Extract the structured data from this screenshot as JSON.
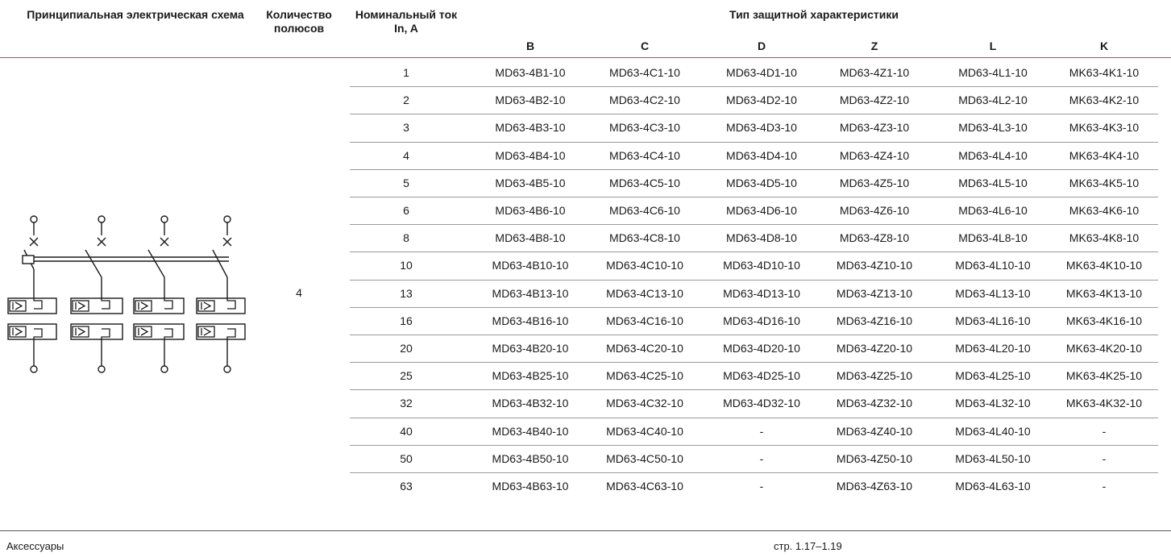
{
  "header": {
    "schema_label": "Принципиальная электрическая схема",
    "poles_label": "Количество полюсов",
    "current_label": "Номинальный ток In, A",
    "type_group_label": "Тип защитной характеристики",
    "types": [
      "B",
      "C",
      "D",
      "Z",
      "L",
      "K"
    ]
  },
  "poles_value": "4",
  "rows": [
    {
      "current": "1",
      "values": [
        "MD63-4B1-10",
        "MD63-4C1-10",
        "MD63-4D1-10",
        "MD63-4Z1-10",
        "MD63-4L1-10",
        "MK63-4K1-10"
      ]
    },
    {
      "current": "2",
      "values": [
        "MD63-4B2-10",
        "MD63-4C2-10",
        "MD63-4D2-10",
        "MD63-4Z2-10",
        "MD63-4L2-10",
        "MK63-4K2-10"
      ]
    },
    {
      "current": "3",
      "values": [
        "MD63-4B3-10",
        "MD63-4C3-10",
        "MD63-4D3-10",
        "MD63-4Z3-10",
        "MD63-4L3-10",
        "MK63-4K3-10"
      ]
    },
    {
      "current": "4",
      "values": [
        "MD63-4B4-10",
        "MD63-4C4-10",
        "MD63-4D4-10",
        "MD63-4Z4-10",
        "MD63-4L4-10",
        "MK63-4K4-10"
      ]
    },
    {
      "current": "5",
      "values": [
        "MD63-4B5-10",
        "MD63-4C5-10",
        "MD63-4D5-10",
        "MD63-4Z5-10",
        "MD63-4L5-10",
        "MK63-4K5-10"
      ]
    },
    {
      "current": "6",
      "values": [
        "MD63-4B6-10",
        "MD63-4C6-10",
        "MD63-4D6-10",
        "MD63-4Z6-10",
        "MD63-4L6-10",
        "MK63-4K6-10"
      ]
    },
    {
      "current": "8",
      "values": [
        "MD63-4B8-10",
        "MD63-4C8-10",
        "MD63-4D8-10",
        "MD63-4Z8-10",
        "MD63-4L8-10",
        "MK63-4K8-10"
      ]
    },
    {
      "current": "10",
      "values": [
        "MD63-4B10-10",
        "MD63-4C10-10",
        "MD63-4D10-10",
        "MD63-4Z10-10",
        "MD63-4L10-10",
        "MK63-4K10-10"
      ]
    },
    {
      "current": "13",
      "values": [
        "MD63-4B13-10",
        "MD63-4C13-10",
        "MD63-4D13-10",
        "MD63-4Z13-10",
        "MD63-4L13-10",
        "MK63-4K13-10"
      ]
    },
    {
      "current": "16",
      "values": [
        "MD63-4B16-10",
        "MD63-4C16-10",
        "MD63-4D16-10",
        "MD63-4Z16-10",
        "MD63-4L16-10",
        "MK63-4K16-10"
      ]
    },
    {
      "current": "20",
      "values": [
        "MD63-4B20-10",
        "MD63-4C20-10",
        "MD63-4D20-10",
        "MD63-4Z20-10",
        "MD63-4L20-10",
        "MK63-4K20-10"
      ]
    },
    {
      "current": "25",
      "values": [
        "MD63-4B25-10",
        "MD63-4C25-10",
        "MD63-4D25-10",
        "MD63-4Z25-10",
        "MD63-4L25-10",
        "MK63-4K25-10"
      ]
    },
    {
      "current": "32",
      "values": [
        "MD63-4B32-10",
        "MD63-4C32-10",
        "MD63-4D32-10",
        "MD63-4Z32-10",
        "MD63-4L32-10",
        "MK63-4K32-10"
      ]
    },
    {
      "current": "40",
      "values": [
        "MD63-4B40-10",
        "MD63-4C40-10",
        "-",
        "MD63-4Z40-10",
        "MD63-4L40-10",
        "-"
      ]
    },
    {
      "current": "50",
      "values": [
        "MD63-4B50-10",
        "MD63-4C50-10",
        "-",
        "MD63-4Z50-10",
        "MD63-4L50-10",
        "-"
      ]
    },
    {
      "current": "63",
      "values": [
        "MD63-4B63-10",
        "MD63-4C63-10",
        "-",
        "MD63-4Z63-10",
        "MD63-4L63-10",
        "-"
      ]
    }
  ],
  "footer": {
    "left_label": "Аксессуары",
    "page_ref": "стр. 1.17–1.19"
  },
  "icons": {
    "schema": "four-pole-breaker-schematic-icon"
  },
  "colors": {
    "header_rule": "#d7452d",
    "row_rule": "#9a9a9a",
    "text": "#1a1a1a"
  }
}
